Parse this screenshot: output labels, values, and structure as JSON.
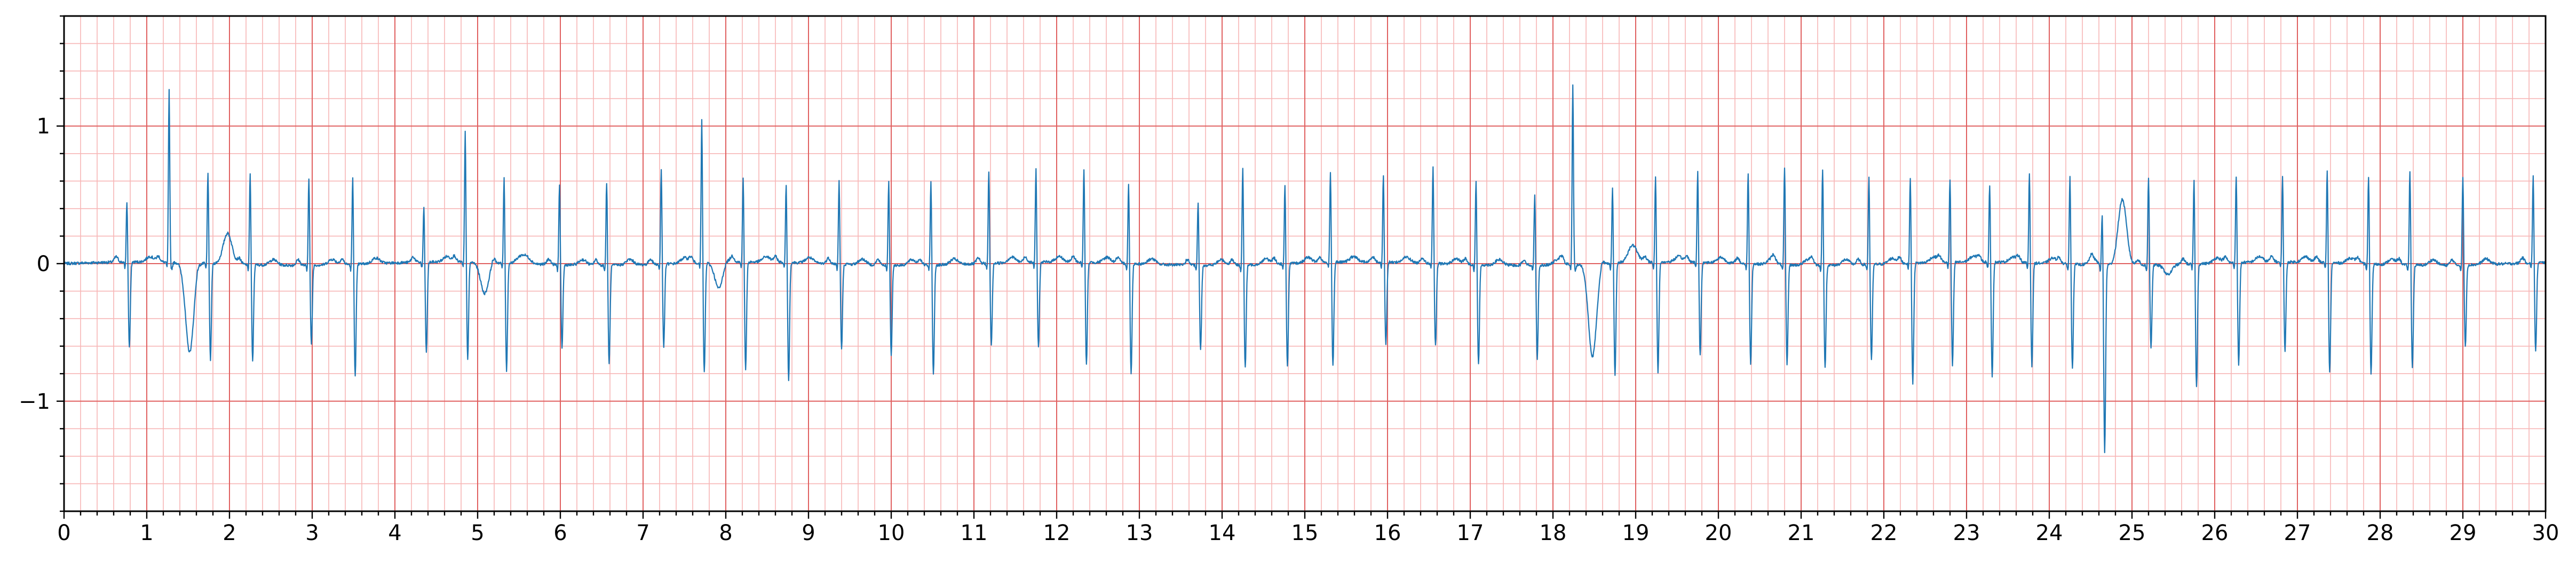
{
  "chart_data": {
    "type": "line",
    "title": "",
    "xlabel": "",
    "ylabel": "",
    "xlim": [
      0,
      30
    ],
    "ylim": [
      -1.8,
      1.8
    ],
    "x_major_step": 1,
    "x_minor_step": 0.2,
    "y_major_step": 1,
    "y_minor_step": 0.2,
    "x_tick_labels": [
      "0",
      "1",
      "2",
      "3",
      "4",
      "5",
      "6",
      "7",
      "8",
      "9",
      "10",
      "11",
      "12",
      "13",
      "14",
      "15",
      "16",
      "17",
      "18",
      "19",
      "20",
      "21",
      "22",
      "23",
      "24",
      "25",
      "26",
      "27",
      "28",
      "29",
      "30"
    ],
    "y_ticks": [
      {
        "value": 1,
        "label": "1"
      },
      {
        "value": 0,
        "label": "0"
      },
      {
        "value": -1,
        "label": "−1"
      }
    ],
    "grid": true,
    "colors": {
      "signal": "#1f77b4",
      "major_grid": "#e06060",
      "minor_grid": "#f7b6b6"
    },
    "series": [
      {
        "beats": [
          {
            "t": 0.76,
            "r": 0.45,
            "s": -0.62
          },
          {
            "t": 1.27,
            "r": 1.25,
            "s": -0.05,
            "wave": -0.68,
            "wave_t": 1.52
          },
          {
            "t": 1.74,
            "r": 0.68,
            "s": -0.7,
            "wave": 0.2,
            "wave_t": 1.97
          },
          {
            "t": 2.25,
            "r": 0.68,
            "s": -0.7
          },
          {
            "t": 2.96,
            "r": 0.65,
            "s": -0.58
          },
          {
            "t": 3.49,
            "r": 0.64,
            "s": -0.82
          },
          {
            "t": 4.35,
            "r": 0.41,
            "s": -0.66
          },
          {
            "t": 4.85,
            "r": 0.96,
            "s": -0.7,
            "wave": -0.25,
            "wave_t": 5.09
          },
          {
            "t": 5.32,
            "r": 0.63,
            "s": -0.78,
            "wave": 0.05,
            "wave_t": 5.52
          },
          {
            "t": 5.99,
            "r": 0.6,
            "s": -0.6
          },
          {
            "t": 6.56,
            "r": 0.62,
            "s": -0.72
          },
          {
            "t": 7.22,
            "r": 0.7,
            "s": -0.6
          },
          {
            "t": 7.71,
            "r": 1.06,
            "s": -0.8,
            "wave": -0.2,
            "wave_t": 7.92
          },
          {
            "t": 8.21,
            "r": 0.63,
            "s": -0.78
          },
          {
            "t": 8.73,
            "r": 0.58,
            "s": -0.85
          },
          {
            "t": 9.37,
            "r": 0.62,
            "s": -0.62
          },
          {
            "t": 9.97,
            "r": 0.63,
            "s": -0.65
          },
          {
            "t": 10.48,
            "r": 0.62,
            "s": -0.8
          },
          {
            "t": 11.18,
            "r": 0.68,
            "s": -0.6
          },
          {
            "t": 11.75,
            "r": 0.69,
            "s": -0.62
          },
          {
            "t": 12.33,
            "r": 0.7,
            "s": -0.75
          },
          {
            "t": 12.87,
            "r": 0.59,
            "s": -0.8
          },
          {
            "t": 13.71,
            "r": 0.47,
            "s": -0.62
          },
          {
            "t": 14.25,
            "r": 0.72,
            "s": -0.75
          },
          {
            "t": 14.76,
            "r": 0.58,
            "s": -0.75
          },
          {
            "t": 15.31,
            "r": 0.68,
            "s": -0.75
          },
          {
            "t": 15.95,
            "r": 0.65,
            "s": -0.6
          },
          {
            "t": 16.55,
            "r": 0.72,
            "s": -0.6
          },
          {
            "t": 17.07,
            "r": 0.63,
            "s": -0.72
          },
          {
            "t": 17.78,
            "r": 0.53,
            "s": -0.68
          },
          {
            "t": 18.24,
            "r": 1.3,
            "s": -0.05,
            "wave": -0.7,
            "wave_t": 18.48
          },
          {
            "t": 18.72,
            "r": 0.56,
            "s": -0.82,
            "wave": 0.1,
            "wave_t": 18.95
          },
          {
            "t": 19.24,
            "r": 0.63,
            "s": -0.8
          },
          {
            "t": 19.75,
            "r": 0.68,
            "s": -0.68
          },
          {
            "t": 20.36,
            "r": 0.68,
            "s": -0.73
          },
          {
            "t": 20.8,
            "r": 0.72,
            "s": -0.72
          },
          {
            "t": 21.26,
            "r": 0.72,
            "s": -0.75
          },
          {
            "t": 21.82,
            "r": 0.65,
            "s": -0.7
          },
          {
            "t": 22.32,
            "r": 0.63,
            "s": -0.88
          },
          {
            "t": 22.8,
            "r": 0.62,
            "s": -0.75
          },
          {
            "t": 23.28,
            "r": 0.58,
            "s": -0.83
          },
          {
            "t": 23.76,
            "r": 0.67,
            "s": -0.75
          },
          {
            "t": 24.25,
            "r": 0.65,
            "s": -0.75
          },
          {
            "t": 24.64,
            "r": 0.38,
            "s": -1.37,
            "wave": 0.45,
            "wave_t": 24.88
          },
          {
            "t": 25.2,
            "r": 0.65,
            "s": -0.6,
            "wave": -0.1,
            "wave_t": 25.45
          },
          {
            "t": 25.75,
            "r": 0.62,
            "s": -0.9
          },
          {
            "t": 26.26,
            "r": 0.65,
            "s": -0.75
          },
          {
            "t": 26.82,
            "r": 0.63,
            "s": -0.65
          },
          {
            "t": 27.36,
            "r": 0.68,
            "s": -0.8
          },
          {
            "t": 27.86,
            "r": 0.65,
            "s": -0.8
          },
          {
            "t": 28.36,
            "r": 0.7,
            "s": -0.75
          },
          {
            "t": 29.0,
            "r": 0.65,
            "s": -0.6
          },
          {
            "t": 29.85,
            "r": 0.65,
            "s": -0.65
          }
        ]
      }
    ]
  }
}
